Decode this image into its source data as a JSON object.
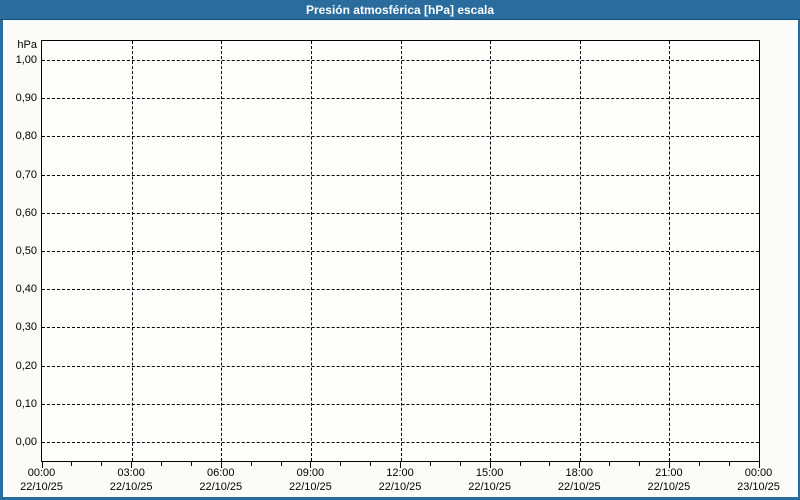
{
  "window": {
    "title": "Presión atmosférica [hPa] escala"
  },
  "chart": {
    "unit_label": "hPa",
    "y_axis": {
      "tick_labels": [
        "1,00",
        "0,90",
        "0,80",
        "0,70",
        "0,60",
        "0,50",
        "0,40",
        "0,30",
        "0,20",
        "0,10",
        "0,00"
      ]
    },
    "x_axis": {
      "major_ticks": [
        {
          "time": "00:00",
          "date": "22/10/25"
        },
        {
          "time": "03:00",
          "date": "22/10/25"
        },
        {
          "time": "06:00",
          "date": "22/10/25"
        },
        {
          "time": "09:00",
          "date": "22/10/25"
        },
        {
          "time": "12:00",
          "date": "22/10/25"
        },
        {
          "time": "15:00",
          "date": "22/10/25"
        },
        {
          "time": "18:00",
          "date": "22/10/25"
        },
        {
          "time": "21:00",
          "date": "22/10/25"
        },
        {
          "time": "00:00",
          "date": "23/10/25"
        }
      ],
      "minor_ticks_per_interval": 2
    }
  },
  "colors": {
    "titlebar_bg": "#2B6C9F",
    "titlebar_text": "#FFFFFF",
    "titlebar_edge": "#17517E",
    "window_border": "#2B6C9F",
    "page_bg": "#FBFCF9",
    "plot_bg": "#FEFFFD",
    "plot_border": "#000000",
    "grid_line": "#000000",
    "label_text": "#000000"
  },
  "chart_data": {
    "type": "line",
    "title": "Presión atmosférica [hPa] escala",
    "xlabel": "",
    "ylabel": "hPa",
    "ylim": [
      0.0,
      1.0
    ],
    "y_tick_step": 0.1,
    "x_range": [
      "22/10/25 00:00",
      "23/10/25 00:00"
    ],
    "x_major_tick_interval_hours": 3,
    "x_minor_tick_interval_hours": 1,
    "grid": "dashed, both axes",
    "legend": "none",
    "series": []
  }
}
